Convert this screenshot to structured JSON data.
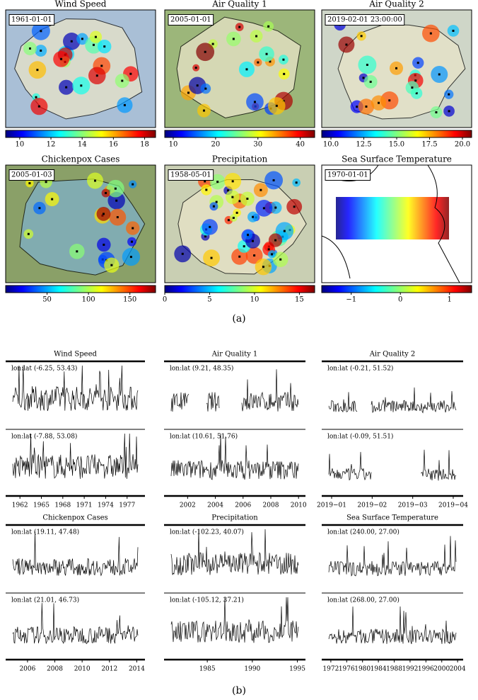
{
  "figure": {
    "maps": [
      {
        "title": "Wind Speed",
        "date": "1961-01-01",
        "colorbar": {
          "range": [
            9.1,
            18.7
          ],
          "ticks": [
            10,
            12,
            14,
            16,
            18
          ]
        }
      },
      {
        "title": "Air Quality 1",
        "date": "2005-01-01",
        "colorbar": {
          "range": [
            8,
            43.4
          ],
          "ticks": [
            10,
            20,
            30,
            40
          ]
        }
      },
      {
        "title": "Air Quality 2",
        "date": "2019-02-01 23:00:00",
        "colorbar": {
          "range": [
            9.3,
            20.7
          ],
          "ticks": [
            {
              "value": 10,
              "label": "10.0"
            },
            {
              "value": 12.5,
              "label": "12.5"
            },
            {
              "value": 15,
              "label": "15.0"
            },
            {
              "value": 17.5,
              "label": "17.5"
            },
            {
              "value": 20,
              "label": "20.0"
            }
          ]
        }
      },
      {
        "title": "Chickenpox Cases",
        "date": "2005-01-03",
        "colorbar": {
          "range": [
            0,
            181
          ],
          "ticks": [
            50,
            100,
            150
          ]
        }
      },
      {
        "title": "Precipitation",
        "date": "1958-05-01",
        "colorbar": {
          "range": [
            0,
            16.7
          ],
          "ticks": [
            0,
            5,
            10,
            15
          ]
        }
      },
      {
        "title": "Sea Surface Temperature",
        "date": "1970-01-01",
        "colorbar": {
          "range": [
            -1.6,
            1.45
          ],
          "ticks": [
            {
              "value": -1,
              "label": "−1"
            },
            0,
            1
          ]
        }
      }
    ],
    "label_a": "(a)",
    "series": [
      {
        "title": "Wind Speed",
        "top": "lon:lat (-6.25, 53.43)",
        "bottom": "lon:lat (-7.88, 53.08)",
        "xlim": [
          1960,
          1979.5
        ],
        "xticks": [
          1962,
          1965,
          1968,
          1971,
          1974,
          1977
        ]
      },
      {
        "title": "Air Quality 1",
        "top": "lon:lat (9.21, 48.35)",
        "bottom": "lon:lat (10.61, 51.76)",
        "xlim": [
          2000.3,
          2010.5
        ],
        "xticks": [
          2002,
          2004,
          2006,
          2008,
          2010
        ]
      },
      {
        "title": "Air Quality 2",
        "top": "lon:lat (-0.21, 51.52)",
        "bottom": "lon:lat (-0.09, 51.51)",
        "xticks": [
          "2019−01",
          "2019−02",
          "2019−03",
          "2019−04"
        ]
      },
      {
        "title": "Chickenpox Cases",
        "top": "lon:lat (19.11, 47.48)",
        "bottom": "lon:lat (21.01, 46.73)",
        "xlim": [
          2004.4,
          2014.6
        ],
        "xticks": [
          2006,
          2008,
          2010,
          2012,
          2014
        ]
      },
      {
        "title": "Precipitation",
        "top": "lon:lat (-102.23, 40.07)",
        "bottom": "lon:lat (-105.12, 37.21)",
        "xlim": [
          1980.2,
          1995.9
        ],
        "xticks": [
          1985,
          1990,
          1995
        ]
      },
      {
        "title": "Sea Surface Temperature",
        "top": "lon:lat (240.00, 27.00)",
        "bottom": "lon:lat (268.00, 27.00)",
        "xlim": [
          1969.7,
          2005.4
        ],
        "xticks": [
          1972,
          1976,
          1980,
          1984,
          1988,
          1992,
          1996,
          2000,
          2004
        ]
      }
    ],
    "label_b": "(b)"
  }
}
